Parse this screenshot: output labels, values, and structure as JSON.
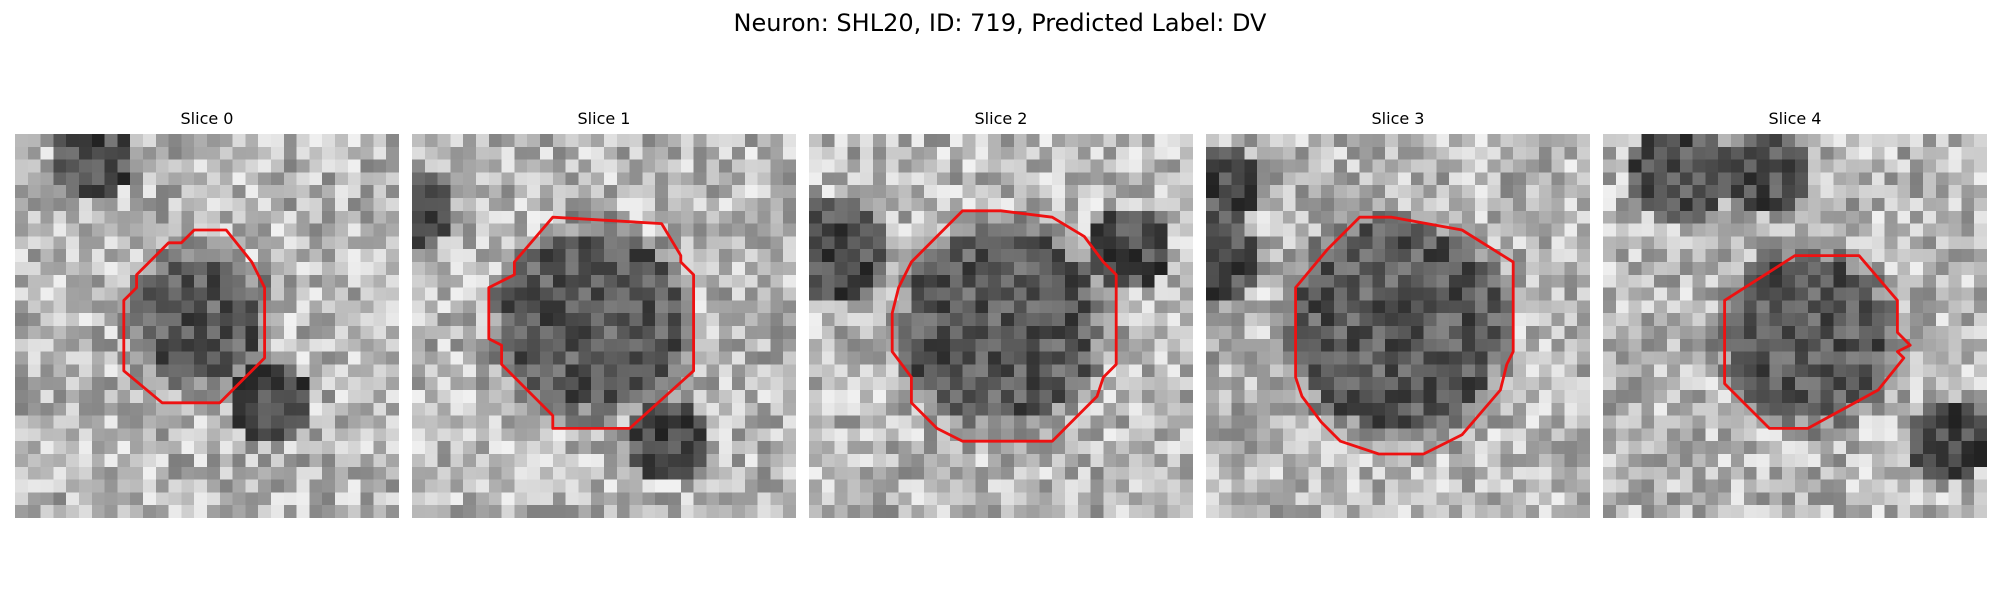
{
  "figure": {
    "title": "Neuron: SHL20, ID: 719, Predicted Label: DV"
  },
  "panels": [
    {
      "title": "Slice 0"
    },
    {
      "title": "Slice 1"
    },
    {
      "title": "Slice 2"
    },
    {
      "title": "Slice 3"
    },
    {
      "title": "Slice 4"
    }
  ],
  "contour_color": "#ee1111"
}
